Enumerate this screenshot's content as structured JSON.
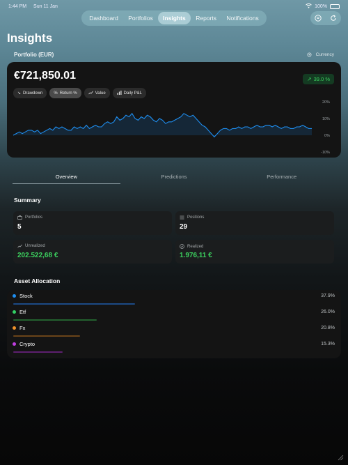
{
  "status_bar": {
    "time": "1:44 PM",
    "date": "Sun 11 Jan",
    "battery": "100%"
  },
  "nav": {
    "tabs": [
      "Dashboard",
      "Portfolios",
      "Insights",
      "Reports",
      "Notifications"
    ],
    "active": "Insights"
  },
  "page": {
    "title": "Insights"
  },
  "portfolio": {
    "label": "Portfolio (EUR)",
    "currency_label": "Currency"
  },
  "chart_card": {
    "value": "€721,850.01",
    "change": "39.0 %",
    "chips": [
      "Drawdown",
      "Return %",
      "Value",
      "Daily P&L"
    ],
    "active_chip": "Return %"
  },
  "chart_data": {
    "type": "area",
    "ylim": [
      -10,
      20
    ],
    "yticks": [
      "20%",
      "10%",
      "0%",
      "-10%"
    ],
    "grid": false,
    "series": [
      {
        "values": [
          0,
          1,
          2,
          1,
          2,
          3,
          3,
          2,
          3,
          1,
          2,
          3,
          4,
          3,
          5,
          4,
          5,
          4,
          3,
          3,
          5,
          4,
          5,
          4,
          6,
          4,
          5,
          6,
          5,
          5,
          7,
          8,
          7,
          8,
          11,
          9,
          10,
          12,
          11,
          13,
          10,
          9,
          11,
          10,
          12,
          11,
          9,
          8,
          10,
          9,
          7,
          8,
          8,
          9,
          10,
          11,
          13,
          12,
          11,
          12,
          10,
          8,
          6,
          5,
          3,
          1,
          -1,
          1,
          3,
          4,
          4,
          3,
          4,
          4,
          5,
          4,
          5,
          5,
          4,
          5,
          6,
          5,
          5,
          6,
          6,
          5,
          6,
          5,
          4,
          5,
          5,
          4,
          4,
          5,
          5,
          6,
          5,
          4,
          4
        ]
      }
    ],
    "line_color": "#1e8ef0"
  },
  "tabs": {
    "items": [
      "Overview",
      "Predictions",
      "Performance"
    ],
    "active": "Overview"
  },
  "summary": {
    "title": "Summary",
    "cards": [
      {
        "label": "Portfolios",
        "value": "5",
        "icon": "briefcase-icon",
        "positive": false
      },
      {
        "label": "Positions",
        "value": "29",
        "icon": "list-icon",
        "positive": false
      },
      {
        "label": "Unrealized",
        "value": "202.522,68 €",
        "icon": "trend-chart-icon",
        "positive": true
      },
      {
        "label": "Realized",
        "value": "1.976,11 €",
        "icon": "check-circle-icon",
        "positive": true
      }
    ]
  },
  "allocation": {
    "title": "Asset Allocation",
    "items": [
      {
        "name": "Stock",
        "pct": "37.9%",
        "value": 37.9,
        "color": "#1e8ef0",
        "bar_color": "#1c4a86"
      },
      {
        "name": "Etf",
        "pct": "26.0%",
        "value": 26.0,
        "color": "#33d065",
        "bar_color": "#23622f"
      },
      {
        "name": "Fx",
        "pct": "20.8%",
        "value": 20.8,
        "color": "#f0932b",
        "bar_color": "#6a4419"
      },
      {
        "name": "Crypto",
        "pct": "15.3%",
        "value": 15.3,
        "color": "#c13fe0",
        "bar_color": "#5d1f70"
      }
    ]
  }
}
